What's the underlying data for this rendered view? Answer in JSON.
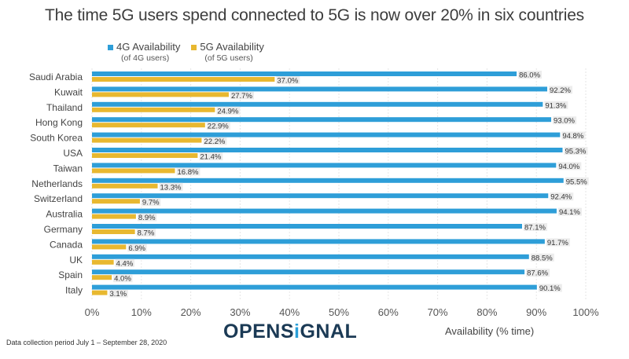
{
  "title": "The time 5G users spend connected to 5G is now over 20% in six countries",
  "legend": [
    {
      "label": "4G Availability",
      "sub": "(of 4G users)",
      "color": "#2e9ed8"
    },
    {
      "label": "5G Availability",
      "sub": "(of 5G users)",
      "color": "#e8b830"
    }
  ],
  "footer": {
    "note": "Data collection period July 1 – September 28, 2020",
    "logo_pre": "OPENS",
    "logo_i": "i",
    "logo_post": "GNAL"
  },
  "chart_data": {
    "type": "bar",
    "orientation": "horizontal",
    "title": "The time 5G users spend connected to 5G is now over 20% in six countries",
    "xlabel": "Availability (% time)",
    "ylabel": "",
    "xlim": [
      0,
      100
    ],
    "x_ticks": [
      "0%",
      "10%",
      "20%",
      "30%",
      "40%",
      "50%",
      "60%",
      "70%",
      "80%",
      "90%",
      "100%"
    ],
    "grid": true,
    "legend_position": "top-left",
    "categories": [
      "Saudi Arabia",
      "Kuwait",
      "Thailand",
      "Hong Kong",
      "South Korea",
      "USA",
      "Taiwan",
      "Netherlands",
      "Switzerland",
      "Australia",
      "Germany",
      "Canada",
      "UK",
      "Spain",
      "Italy"
    ],
    "series": [
      {
        "name": "4G Availability (of 4G users)",
        "color": "#2e9ed8",
        "values": [
          86.0,
          92.2,
          91.3,
          93.0,
          94.8,
          95.3,
          94.0,
          95.5,
          92.4,
          94.1,
          87.1,
          91.7,
          88.5,
          87.6,
          90.1
        ]
      },
      {
        "name": "5G Availability (of 5G users)",
        "color": "#e8b830",
        "values": [
          37.0,
          27.7,
          24.9,
          22.9,
          22.2,
          21.4,
          16.8,
          13.3,
          9.7,
          8.9,
          8.7,
          6.9,
          4.4,
          4.0,
          3.1
        ]
      }
    ]
  }
}
